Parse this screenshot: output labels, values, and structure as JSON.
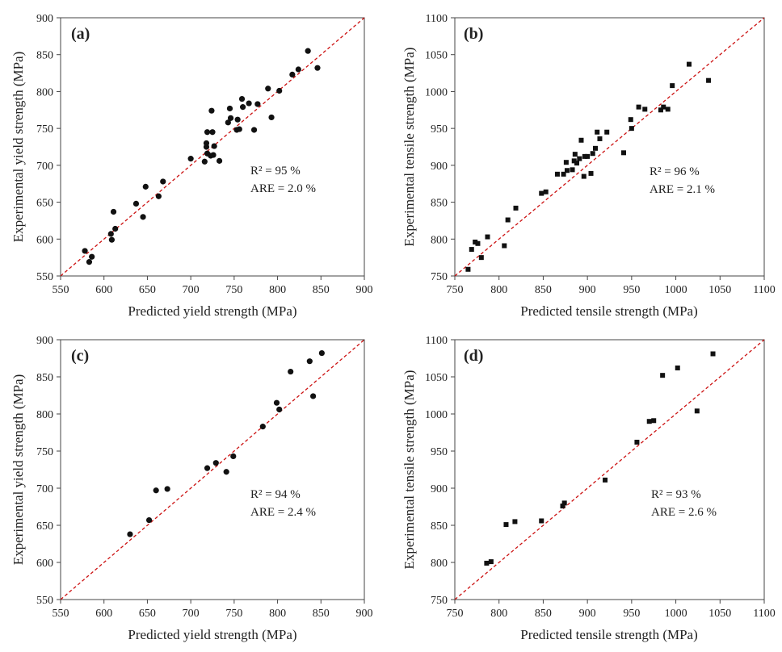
{
  "colors": {
    "fit_line": "#cc1111",
    "marker": "#111111",
    "axis": "#444444"
  },
  "chart_data": [
    {
      "id": "a",
      "type": "scatter",
      "panel_label": "(a)",
      "marker": "circle",
      "xlabel": "Predicted yield strength (MPa)",
      "ylabel": "Experimental yield strength (MPa)",
      "xlim": [
        550,
        900
      ],
      "ylim": [
        550,
        900
      ],
      "xticks": [
        "550",
        "600",
        "650",
        "700",
        "750",
        "800",
        "850",
        "900"
      ],
      "yticks": [
        "550",
        "600",
        "650",
        "700",
        "750",
        "800",
        "850",
        "900"
      ],
      "reference_line": "y = x",
      "annotation": {
        "r2": "R² = 95 %",
        "are": "ARE = 2.0 %"
      },
      "points": [
        [
          578,
          584
        ],
        [
          583,
          569
        ],
        [
          586,
          576
        ],
        [
          608,
          607
        ],
        [
          609,
          599
        ],
        [
          611,
          637
        ],
        [
          613,
          614
        ],
        [
          637,
          648
        ],
        [
          645,
          630
        ],
        [
          648,
          671
        ],
        [
          663,
          658
        ],
        [
          668,
          678
        ],
        [
          700,
          709
        ],
        [
          716,
          705
        ],
        [
          718,
          730
        ],
        [
          718,
          725
        ],
        [
          719,
          716
        ],
        [
          719,
          745
        ],
        [
          723,
          713
        ],
        [
          724,
          774
        ],
        [
          725,
          745
        ],
        [
          726,
          714
        ],
        [
          727,
          726
        ],
        [
          733,
          706
        ],
        [
          743,
          758
        ],
        [
          745,
          777
        ],
        [
          746,
          764
        ],
        [
          753,
          748
        ],
        [
          754,
          762
        ],
        [
          756,
          749
        ],
        [
          759,
          790
        ],
        [
          760,
          779
        ],
        [
          767,
          784
        ],
        [
          773,
          748
        ],
        [
          777,
          783
        ],
        [
          789,
          804
        ],
        [
          793,
          765
        ],
        [
          802,
          801
        ],
        [
          817,
          823
        ],
        [
          824,
          830
        ],
        [
          835,
          855
        ],
        [
          846,
          832
        ]
      ]
    },
    {
      "id": "b",
      "type": "scatter",
      "panel_label": "(b)",
      "marker": "square",
      "xlabel": "Predicted tensile strength (MPa)",
      "ylabel": "Experimental tensile strength (MPa)",
      "xlim": [
        750,
        1100
      ],
      "ylim": [
        750,
        1100
      ],
      "xticks": [
        "750",
        "800",
        "850",
        "900",
        "950",
        "1000",
        "1050",
        "1100"
      ],
      "yticks": [
        "750",
        "800",
        "850",
        "900",
        "950",
        "1000",
        "1050",
        "1100"
      ],
      "reference_line": "y = x",
      "annotation": {
        "r2": "R² = 96 %",
        "are": "ARE = 2.1 %"
      },
      "points": [
        [
          765,
          759
        ],
        [
          769,
          786
        ],
        [
          773,
          796
        ],
        [
          776,
          794
        ],
        [
          780,
          775
        ],
        [
          787,
          803
        ],
        [
          806,
          791
        ],
        [
          810,
          826
        ],
        [
          819,
          842
        ],
        [
          848,
          862
        ],
        [
          853,
          864
        ],
        [
          866,
          888
        ],
        [
          873,
          888
        ],
        [
          876,
          904
        ],
        [
          877,
          893
        ],
        [
          883,
          894
        ],
        [
          885,
          906
        ],
        [
          886,
          915
        ],
        [
          888,
          903
        ],
        [
          891,
          909
        ],
        [
          893,
          934
        ],
        [
          896,
          885
        ],
        [
          897,
          912
        ],
        [
          900,
          912
        ],
        [
          904,
          889
        ],
        [
          906,
          916
        ],
        [
          909,
          923
        ],
        [
          911,
          945
        ],
        [
          914,
          936
        ],
        [
          922,
          945
        ],
        [
          941,
          917
        ],
        [
          949,
          962
        ],
        [
          950,
          950
        ],
        [
          958,
          979
        ],
        [
          965,
          976
        ],
        [
          983,
          975
        ],
        [
          986,
          979
        ],
        [
          991,
          976
        ],
        [
          996,
          1008
        ],
        [
          1015,
          1037
        ],
        [
          1037,
          1015
        ]
      ]
    },
    {
      "id": "c",
      "type": "scatter",
      "panel_label": "(c)",
      "marker": "circle",
      "xlabel": "Predicted yield strength (MPa)",
      "ylabel": "Experimental yield strength (MPa)",
      "xlim": [
        550,
        900
      ],
      "ylim": [
        550,
        900
      ],
      "xticks": [
        "550",
        "600",
        "650",
        "700",
        "750",
        "800",
        "850",
        "900"
      ],
      "yticks": [
        "550",
        "600",
        "650",
        "700",
        "750",
        "800",
        "850",
        "900"
      ],
      "reference_line": "y = x",
      "annotation": {
        "r2": "R² = 94 %",
        "are": "ARE = 2.4 %"
      },
      "points": [
        [
          630,
          638
        ],
        [
          652,
          657
        ],
        [
          660,
          697
        ],
        [
          673,
          699
        ],
        [
          719,
          727
        ],
        [
          729,
          734
        ],
        [
          741,
          722
        ],
        [
          749,
          743
        ],
        [
          783,
          783
        ],
        [
          799,
          815
        ],
        [
          802,
          806
        ],
        [
          815,
          857
        ],
        [
          837,
          871
        ],
        [
          841,
          824
        ],
        [
          851,
          882
        ]
      ]
    },
    {
      "id": "d",
      "type": "scatter",
      "panel_label": "(d)",
      "marker": "square",
      "xlabel": "Predicted tensile strength (MPa)",
      "ylabel": "Experimental tensile strength (MPa)",
      "xlim": [
        750,
        1100
      ],
      "ylim": [
        750,
        1100
      ],
      "xticks": [
        "750",
        "800",
        "850",
        "900",
        "950",
        "1000",
        "1050",
        "1100"
      ],
      "yticks": [
        "750",
        "800",
        "850",
        "900",
        "950",
        "1000",
        "1050",
        "1100"
      ],
      "reference_line": "y = x",
      "annotation": {
        "r2": "R² = 93 %",
        "are": "ARE = 2.6 %"
      },
      "points": [
        [
          786,
          799
        ],
        [
          791,
          801
        ],
        [
          808,
          851
        ],
        [
          818,
          855
        ],
        [
          848,
          856
        ],
        [
          872,
          876
        ],
        [
          874,
          880
        ],
        [
          920,
          911
        ],
        [
          956,
          962
        ],
        [
          970,
          990
        ],
        [
          975,
          991
        ],
        [
          985,
          1052
        ],
        [
          1002,
          1062
        ],
        [
          1024,
          1004
        ],
        [
          1042,
          1081
        ]
      ]
    }
  ]
}
